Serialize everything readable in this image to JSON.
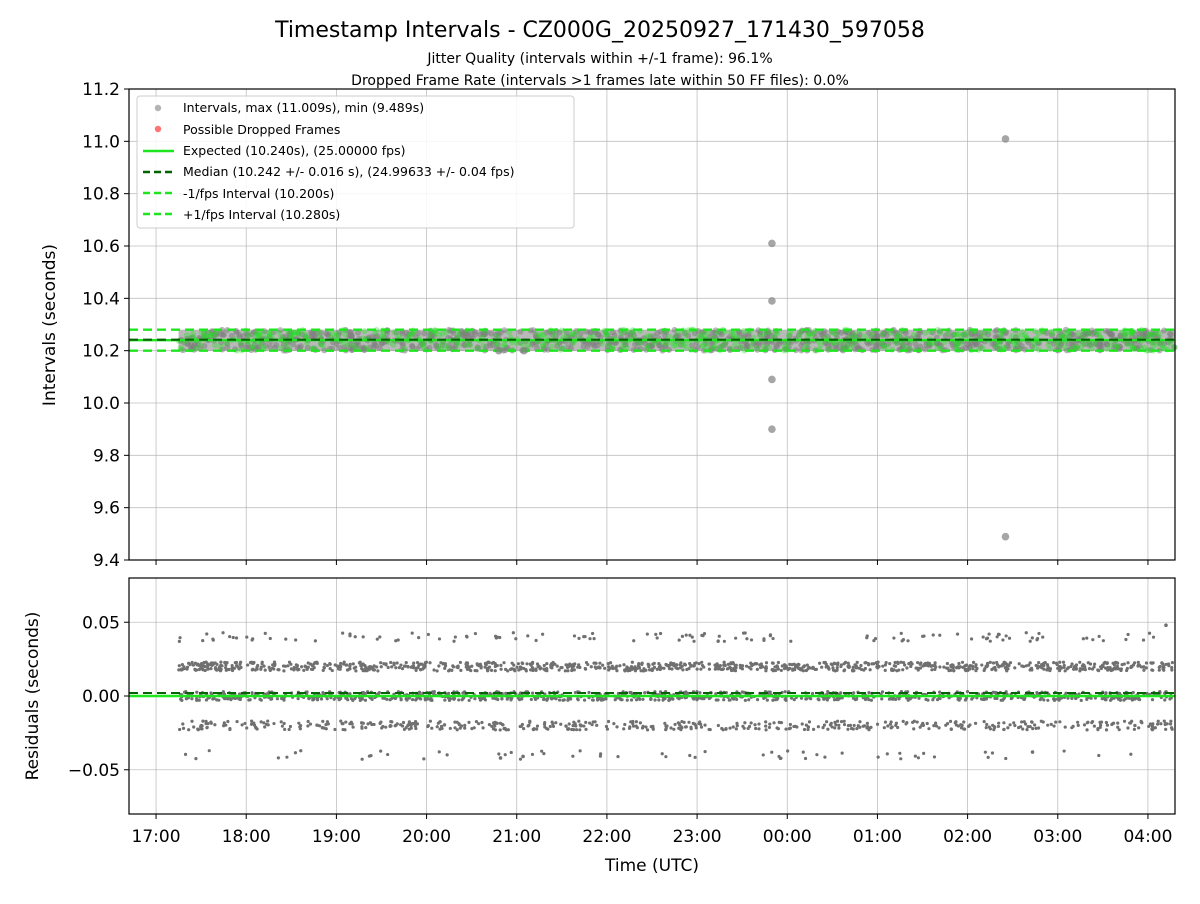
{
  "title": "Timestamp Intervals - CZ000G_20250927_171430_597058",
  "subtitle_1": "Jitter Quality (intervals within +/-1 frame): 96.1%",
  "subtitle_2": "Dropped Frame Rate (intervals >1 frames late within 50 FF files): 0.0%",
  "colors": {
    "interval_points": "#808080",
    "dropped_points": "#ff5a5a",
    "expected_line": "#1ee61e",
    "median_line": "#006400",
    "fps_interval_lines": "#1ee61e",
    "residual_points": "#707070",
    "grid": "#b0b0b0"
  },
  "chart_data": [
    {
      "type": "scatter",
      "name_hint": "intervals",
      "ylabel": "Intervals (seconds)",
      "ylim": [
        9.4,
        11.2
      ],
      "yticks": [
        "9.4",
        "9.6",
        "9.8",
        "10.0",
        "10.2",
        "10.4",
        "10.6",
        "10.8",
        "11.0",
        "11.2"
      ],
      "ytick_values": [
        9.4,
        9.6,
        9.8,
        10.0,
        10.2,
        10.4,
        10.6,
        10.8,
        11.0,
        11.2
      ],
      "xlim_hours": [
        16.7,
        28.3
      ],
      "grid": true,
      "legend_position": "top-left",
      "legend": [
        "Intervals, max (11.009s), min (9.489s)",
        "Possible Dropped Frames",
        "Expected (10.240s), (25.00000 fps)",
        "Median (10.242 +/- 0.016 s), (24.99633 +/- 0.04 fps)",
        "-1/fps Interval (10.200s)",
        "+1/fps Interval (10.280s)"
      ],
      "reference_lines": {
        "expected": 10.24,
        "median": 10.242,
        "minus_one_fps": 10.2,
        "plus_one_fps": 10.28
      },
      "band": {
        "x_start_hours": 17.25,
        "x_end_hours": 28.3,
        "center": 10.24,
        "spread": 0.04
      },
      "outliers": [
        {
          "time": "23:50",
          "x_hours": 23.83,
          "y": 10.61
        },
        {
          "time": "23:50",
          "x_hours": 23.83,
          "y": 10.39
        },
        {
          "time": "23:50",
          "x_hours": 23.83,
          "y": 10.09
        },
        {
          "time": "23:50",
          "x_hours": 23.83,
          "y": 9.9
        },
        {
          "time": "02:25",
          "x_hours": 26.42,
          "y": 11.009
        },
        {
          "time": "02:25",
          "x_hours": 26.42,
          "y": 9.489
        },
        {
          "time": "20:48",
          "x_hours": 20.8,
          "y": 10.2
        },
        {
          "time": "21:05",
          "x_hours": 21.08,
          "y": 10.2
        }
      ]
    },
    {
      "type": "scatter",
      "name_hint": "residuals",
      "ylabel": "Residuals (seconds)",
      "xlabel": "Time (UTC)",
      "ylim": [
        -0.08,
        0.08
      ],
      "yticks": [
        "−0.05",
        "0.00",
        "0.05"
      ],
      "ytick_values": [
        -0.05,
        0.0,
        0.05
      ],
      "xticks": [
        "17:00",
        "18:00",
        "19:00",
        "20:00",
        "21:00",
        "22:00",
        "23:00",
        "00:00",
        "01:00",
        "02:00",
        "03:00",
        "04:00"
      ],
      "xtick_values_hours": [
        17,
        18,
        19,
        20,
        21,
        22,
        23,
        24,
        25,
        26,
        27,
        28
      ],
      "xlim_hours": [
        16.7,
        28.3
      ],
      "grid": true,
      "residual_levels": [
        -0.04,
        -0.02,
        0.0,
        0.02,
        0.04
      ],
      "residual_level_weights": [
        0.02,
        0.2,
        0.38,
        0.36,
        0.04
      ],
      "reference_lines": {
        "zero_expected": 0.0,
        "median_offset": 0.002
      },
      "outliers": [
        {
          "x_hours": 20.82,
          "y": -0.042
        },
        {
          "x_hours": 21.07,
          "y": -0.041
        },
        {
          "x_hours": 26.72,
          "y": -0.038
        },
        {
          "x_hours": 28.2,
          "y": 0.048
        }
      ]
    }
  ]
}
